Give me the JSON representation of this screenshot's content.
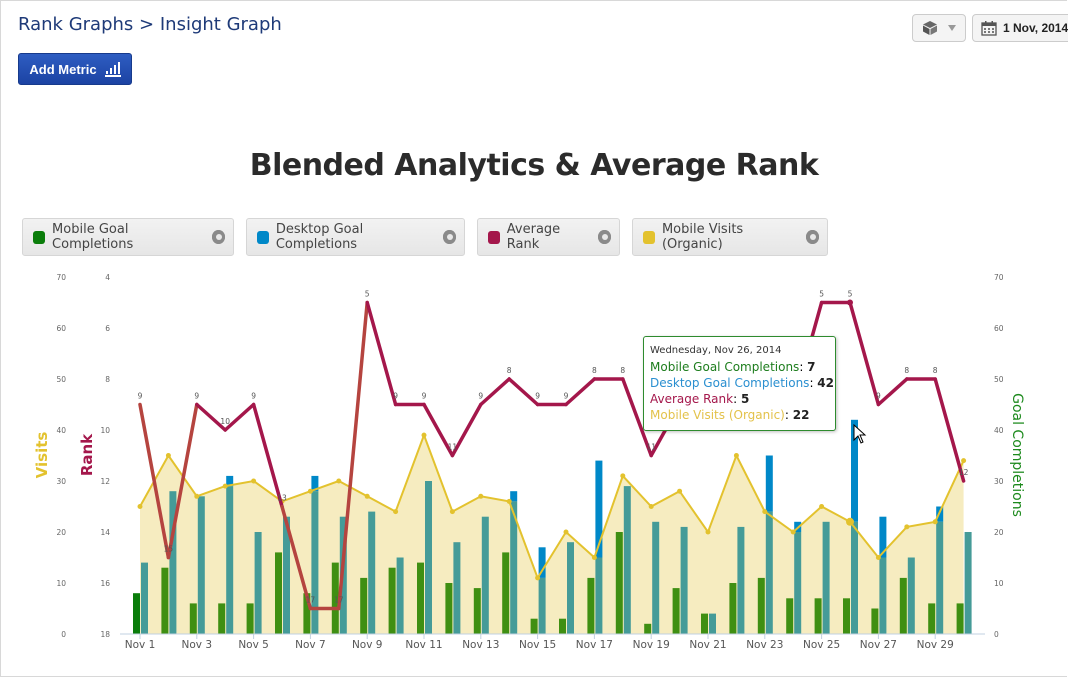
{
  "breadcrumb": {
    "parent": "Rank Graphs",
    "separator": ">",
    "current": "Insight Graph"
  },
  "toolbar": {
    "add_metric_label": "Add Metric",
    "date_label": "1 Nov, 2014"
  },
  "colors": {
    "mobile_goal": "#3f8f12",
    "mobile_goal_highlight": "#0a7d0a",
    "desktop_goal": "#0088c8",
    "desktop_overlap": "#459b98",
    "avg_rank": "#a4174b",
    "avg_rank_low": "#b5443f",
    "visits": "#e3c22e",
    "visits_fill": "#f6ecc0",
    "accent": "#1c43a3"
  },
  "legend": [
    {
      "label": "Mobile Goal Completions",
      "color": "#0a7d0a"
    },
    {
      "label": "Desktop Goal Completions",
      "color": "#0088c8"
    },
    {
      "label": "Average Rank",
      "color": "#a4174b"
    },
    {
      "label": "Mobile Visits (Organic)",
      "color": "#e3c22e"
    }
  ],
  "tooltip": {
    "date": "Wednesday, Nov 26, 2014",
    "rows": [
      {
        "label": "Mobile Goal Completions",
        "value": "7",
        "color": "#1d7d1d"
      },
      {
        "label": "Desktop Goal Completions",
        "value": "42",
        "color": "#2a8fd0"
      },
      {
        "label": "Average Rank",
        "value": "5",
        "color": "#a4174b"
      },
      {
        "label": "Mobile Visits (Organic)",
        "value": "22",
        "color": "#e3c24a"
      }
    ]
  },
  "chart_data": {
    "type": "bar",
    "title": "Blended Analytics & Average Rank",
    "x": [
      "Nov 1",
      "Nov 2",
      "Nov 3",
      "Nov 4",
      "Nov 5",
      "Nov 6",
      "Nov 7",
      "Nov 8",
      "Nov 9",
      "Nov 10",
      "Nov 11",
      "Nov 12",
      "Nov 13",
      "Nov 14",
      "Nov 15",
      "Nov 16",
      "Nov 17",
      "Nov 18",
      "Nov 19",
      "Nov 20",
      "Nov 21",
      "Nov 22",
      "Nov 23",
      "Nov 24",
      "Nov 25",
      "Nov 26",
      "Nov 27",
      "Nov 28",
      "Nov 29",
      "Nov 30"
    ],
    "x_tick_labels": [
      "Nov 1",
      "Nov 3",
      "Nov 5",
      "Nov 7",
      "Nov 9",
      "Nov 11",
      "Nov 13",
      "Nov 15",
      "Nov 17",
      "Nov 19",
      "Nov 21",
      "Nov 23",
      "Nov 25",
      "Nov 27",
      "Nov 29"
    ],
    "axes": {
      "visits": {
        "label": "Visits",
        "ticks": [
          "70",
          "60",
          "50",
          "40",
          "30",
          "20",
          "10",
          "0"
        ],
        "range": [
          0,
          70
        ]
      },
      "rank": {
        "label": "Rank",
        "ticks": [
          "4",
          "6",
          "8",
          "10",
          "12",
          "14",
          "16",
          "18"
        ],
        "range": [
          4,
          18
        ],
        "reversed": true
      },
      "goal": {
        "label": "Goal Completions",
        "ticks": [
          "70",
          "60",
          "50",
          "40",
          "30",
          "20",
          "10",
          "0"
        ],
        "range": [
          0,
          70
        ]
      }
    },
    "series": [
      {
        "name": "Mobile Goal Completions",
        "type": "bar",
        "axis": "goal",
        "values": [
          8,
          13,
          6,
          6,
          6,
          16,
          8,
          14,
          11,
          13,
          14,
          10,
          9,
          16,
          3,
          3,
          11,
          20,
          2,
          9,
          4,
          10,
          11,
          7,
          7,
          7,
          5,
          11,
          6,
          6
        ]
      },
      {
        "name": "Desktop Goal Completions",
        "type": "bar",
        "axis": "goal",
        "values": [
          14,
          28,
          27,
          31,
          20,
          23,
          31,
          23,
          24,
          15,
          30,
          18,
          23,
          28,
          17,
          18,
          34,
          29,
          22,
          21,
          4,
          21,
          35,
          22,
          22,
          42,
          23,
          15,
          25,
          20
        ]
      },
      {
        "name": "Average Rank",
        "type": "line",
        "axis": "rank",
        "values": [
          9,
          15,
          9,
          10,
          9,
          13,
          17,
          17,
          5,
          9,
          9,
          11,
          9,
          8,
          9,
          9,
          8,
          8,
          11,
          9,
          9,
          9,
          9,
          9,
          5,
          5,
          9,
          8,
          8,
          12
        ]
      },
      {
        "name": "Mobile Visits (Organic)",
        "type": "area",
        "axis": "visits",
        "values": [
          25,
          35,
          27,
          29,
          30,
          26,
          28,
          30,
          27,
          24,
          39,
          24,
          27,
          26,
          11,
          20,
          15,
          31,
          25,
          28,
          20,
          35,
          24,
          20,
          25,
          22,
          15,
          21,
          22,
          34
        ]
      }
    ],
    "rank_data_labels": [
      "9",
      "15",
      "9",
      "10",
      "9",
      "13",
      "17",
      "17",
      "5",
      "9",
      "9",
      "11",
      "9",
      "8",
      "9",
      "9",
      "8",
      "8",
      "11",
      "9",
      "9",
      "9",
      "9",
      "9",
      "5",
      "5",
      "9",
      "8",
      "8",
      "12"
    ],
    "highlighted_index": 25
  }
}
